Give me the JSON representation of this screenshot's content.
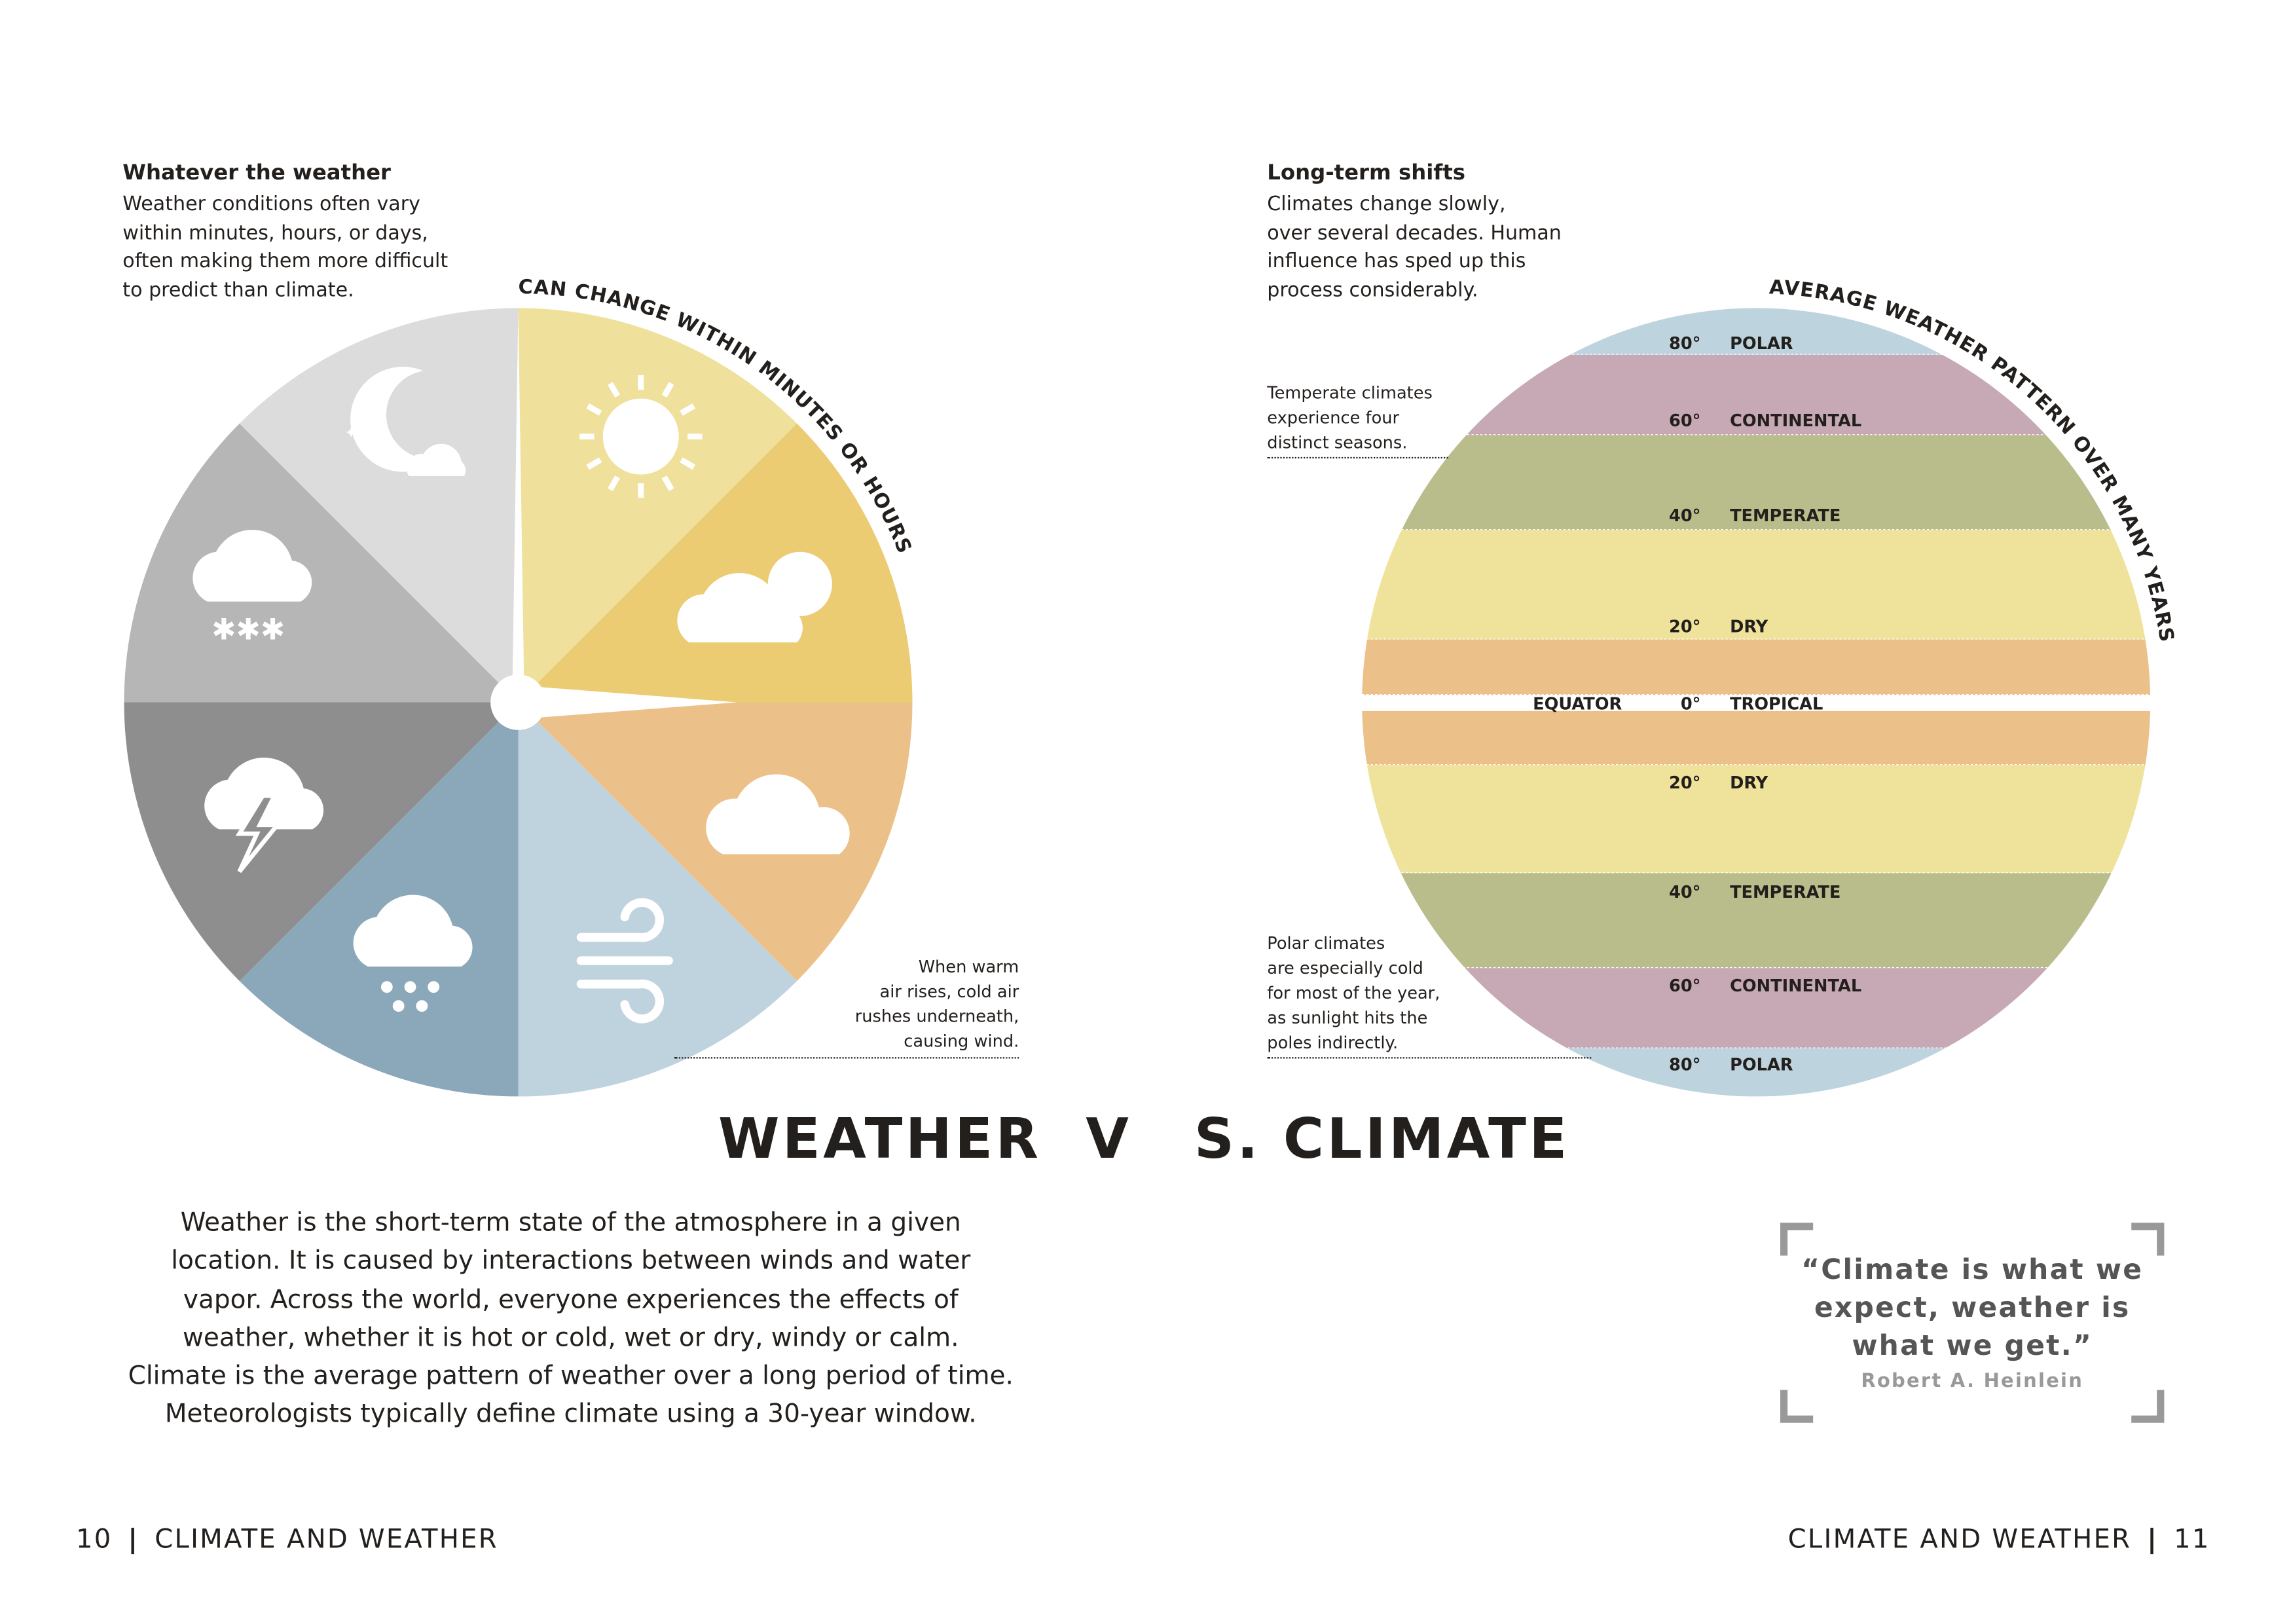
{
  "left": {
    "heading": "Whatever the weather",
    "text": [
      "Weather conditions often vary",
      "within minutes, hours, or days,",
      "often making them more difficult",
      "to predict than climate."
    ],
    "arc_label": "CAN CHANGE WITHIN MINUTES OR HOURS",
    "wind_note": [
      "When warm",
      "air rises, cold air",
      "rushes underneath,",
      "causing wind."
    ],
    "segments": [
      {
        "icon": "sun-icon",
        "color": "#efe09b"
      },
      {
        "icon": "sun-behind-cloud-icon",
        "color": "#ebcc73"
      },
      {
        "icon": "cloud-icon",
        "color": "#ecc189"
      },
      {
        "icon": "wind-icon",
        "color": "#bfd3de"
      },
      {
        "icon": "rain-icon",
        "color": "#8ba7ba"
      },
      {
        "icon": "thunderstorm-icon",
        "color": "#8e8e8e"
      },
      {
        "icon": "snow-icon",
        "color": "#b6b6b6"
      },
      {
        "icon": "moon-stars-icon",
        "color": "#dcdcdc"
      }
    ]
  },
  "right": {
    "heading": "Long-term shifts",
    "text": [
      "Climates change slowly,",
      "over several decades. Human",
      "influence has sped up this",
      "process considerably."
    ],
    "arc_label": "AVERAGE WEATHER PATTERN OVER MANY YEARS",
    "temperate_note": [
      "Temperate climates",
      "experience four",
      "distinct seasons."
    ],
    "polar_note": [
      "Polar climates",
      "are especially cold",
      "for most of the year,",
      "as sunlight hits the",
      "poles indirectly."
    ],
    "equator_label": "EQUATOR",
    "zones": [
      {
        "deg": "80°",
        "name": "POLAR",
        "color": "#bdd3de"
      },
      {
        "deg": "60°",
        "name": "CONTINENTAL",
        "color": "#c6a9b4"
      },
      {
        "deg": "40°",
        "name": "TEMPERATE",
        "color": "#b9bd8b"
      },
      {
        "deg": "20°",
        "name": "DRY",
        "color": "#efe39b"
      },
      {
        "deg": "0°",
        "name": "TROPICAL",
        "color": "#ecc089"
      },
      {
        "deg": "20°",
        "name": "DRY",
        "color": "#efe39b"
      },
      {
        "deg": "40°",
        "name": "TEMPERATE",
        "color": "#b9bd8b"
      },
      {
        "deg": "60°",
        "name": "CONTINENTAL",
        "color": "#c6a9b4"
      },
      {
        "deg": "80°",
        "name": "POLAR",
        "color": "#bdd3de"
      }
    ]
  },
  "title": {
    "part1": "WEATHER  V",
    "part2": "S. CLIMATE"
  },
  "body": [
    "Weather is the short-term state of the atmosphere in a given",
    "location. It is caused by interactions between winds and water",
    "vapor. Across the world, everyone experiences the effects of",
    "weather, whether it is hot or cold, wet or dry, windy or calm.",
    "Climate is the average pattern of weather over a long period of time.",
    "Meteorologists typically define climate using a 30-year window."
  ],
  "quote": {
    "lines": [
      "“Climate is what we",
      "expect, weather is",
      "what we get.”"
    ],
    "author": "Robert A. Heinlein"
  },
  "footer": {
    "left_page": "10",
    "left_title": "CLIMATE AND WEATHER",
    "right_title": "CLIMATE AND WEATHER",
    "right_page": "11"
  }
}
